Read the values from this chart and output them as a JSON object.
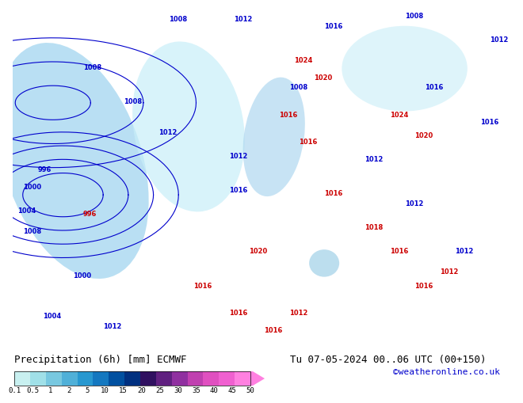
{
  "title_left": "Precipitation (6h) [mm] ECMWF",
  "title_right": "Tu 07-05-2024 00..06 UTC (00+150)",
  "credit": "©weatheronline.co.uk",
  "colorbar_levels": [
    0.1,
    0.5,
    1,
    2,
    5,
    10,
    15,
    20,
    25,
    30,
    35,
    40,
    45,
    50
  ],
  "colorbar_colors": [
    "#c8f0f0",
    "#a0e0e8",
    "#78c8e0",
    "#50b0d8",
    "#2898d0",
    "#1478c0",
    "#0050a0",
    "#003080",
    "#301060",
    "#602080",
    "#9030a0",
    "#c040b0",
    "#e050c0",
    "#f060d0",
    "#ff80e0"
  ],
  "map_background": "#e8f8e8",
  "label_fontsize": 9,
  "credit_color": "#0000cc",
  "title_fontsize": 9,
  "credit_fontsize": 8
}
